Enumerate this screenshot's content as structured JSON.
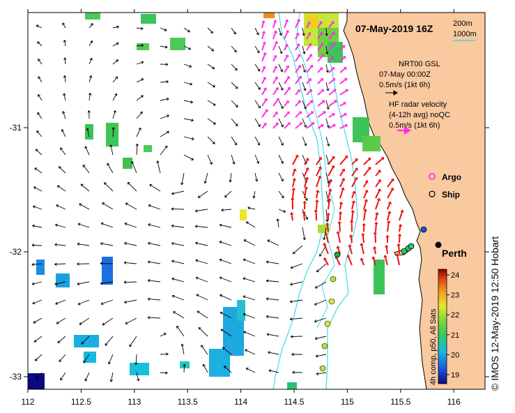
{
  "map": {
    "title": "07-May-2019 16Z",
    "place_label": "Perth",
    "credit": "© IMOS 12-May-2019 12:50 Hobart",
    "depth_legend": [
      "200m",
      "1000m"
    ],
    "x_axis": {
      "ticks": [
        "112",
        "112.5",
        "113",
        "113.5",
        "114",
        "114.5",
        "115",
        "115.5",
        "116"
      ]
    },
    "y_axis": {
      "ticks": [
        "-31",
        "-32",
        "-33"
      ]
    }
  },
  "legend": {
    "model_line1": "NRT00 GSL",
    "model_line2": "07-May 00:00Z",
    "model_scale": "0.5m/s (1kt 6h)",
    "radar_line1": "HF radar velocity",
    "radar_line2": "(4-12h avg) noQC",
    "radar_scale": "0.5m/s (1kt 6h)",
    "argo_label": "Argo",
    "ship_label": "Ship"
  },
  "colorbar": {
    "label": "4h comp, p50, All Sats",
    "ticks": [
      "24",
      "23",
      "22",
      "21",
      "20",
      "19"
    ]
  },
  "colors": {
    "land": "#f9c9a0",
    "isobath": "#3fd8e6",
    "radar_magenta": "#ff2ee6",
    "radar_red": "#ee1111",
    "argo": "#ff44dd"
  }
}
